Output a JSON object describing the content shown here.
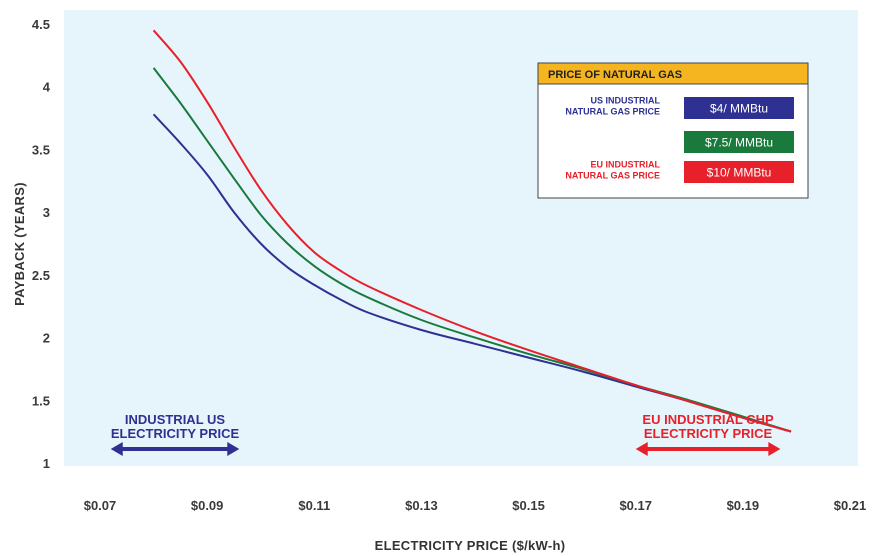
{
  "chart_data": {
    "type": "line",
    "title": "",
    "xlabel": "ELECTRICITY PRICE ($/kW-h)",
    "ylabel": "PAYBACK (YEARS)",
    "xlim": [
      0.07,
      0.21
    ],
    "ylim": [
      0.95,
      4.55
    ],
    "grid": false,
    "x_ticks": [
      0.07,
      0.09,
      0.11,
      0.13,
      0.15,
      0.17,
      0.19,
      0.21
    ],
    "x_tick_labels": [
      "$0.07",
      "$0.09",
      "$0.11",
      "$0.13",
      "$0.15",
      "$0.17",
      "$0.19",
      "$0.21"
    ],
    "y_ticks": [
      1,
      1.5,
      2,
      2.5,
      3,
      3.5,
      4,
      4.5
    ],
    "y_tick_labels": [
      "1",
      "1.5",
      "2",
      "2.5",
      "3",
      "3.5",
      "4",
      "4.5"
    ],
    "legend": {
      "title": "PRICE OF NATURAL GAS",
      "placement": "top-right",
      "entries": [
        {
          "label_lines": [
            "US INDUSTRIAL",
            "NATURAL GAS PRICE"
          ],
          "badge": "$4/ MMBtu",
          "color": "#2e3192"
        },
        {
          "label_lines": [],
          "badge": "$7.5/ MMBtu",
          "color": "#1a7a3c"
        },
        {
          "label_lines": [
            "EU INDUSTRIAL",
            "NATURAL GAS PRICE"
          ],
          "badge": "$10/ MMBtu",
          "color": "#e8202a"
        }
      ]
    },
    "series": [
      {
        "name": "$4/ MMBtu",
        "color": "#2e3192",
        "x": [
          0.08,
          0.085,
          0.09,
          0.095,
          0.1,
          0.105,
          0.11,
          0.115,
          0.12,
          0.13,
          0.14,
          0.15,
          0.16,
          0.17,
          0.18,
          0.19,
          0.199
        ],
        "y": [
          3.78,
          3.55,
          3.3,
          3.0,
          2.75,
          2.56,
          2.42,
          2.3,
          2.2,
          2.06,
          1.95,
          1.84,
          1.73,
          1.61,
          1.49,
          1.36,
          1.25
        ]
      },
      {
        "name": "$7.5/ MMBtu",
        "color": "#1a7a3c",
        "x": [
          0.08,
          0.085,
          0.09,
          0.095,
          0.1,
          0.105,
          0.11,
          0.115,
          0.12,
          0.13,
          0.14,
          0.15,
          0.16,
          0.17,
          0.18,
          0.19,
          0.199
        ],
        "y": [
          4.15,
          3.87,
          3.57,
          3.27,
          2.98,
          2.75,
          2.57,
          2.43,
          2.32,
          2.14,
          2.0,
          1.87,
          1.75,
          1.62,
          1.5,
          1.37,
          1.25
        ]
      },
      {
        "name": "$10/ MMBtu",
        "color": "#e8202a",
        "x": [
          0.08,
          0.085,
          0.09,
          0.095,
          0.1,
          0.105,
          0.11,
          0.115,
          0.12,
          0.13,
          0.14,
          0.15,
          0.16,
          0.17,
          0.18,
          0.19,
          0.199
        ],
        "y": [
          4.45,
          4.2,
          3.88,
          3.52,
          3.18,
          2.9,
          2.68,
          2.53,
          2.41,
          2.22,
          2.05,
          1.9,
          1.76,
          1.62,
          1.49,
          1.36,
          1.25
        ]
      }
    ],
    "annotations": [
      {
        "lines": [
          "INDUSTRIAL US",
          "ELECTRICITY PRICE"
        ],
        "x_range": [
          0.072,
          0.096
        ],
        "color": "#2e3192"
      },
      {
        "lines": [
          "EU INDUSTRIAL CHP",
          "ELECTRICITY PRICE"
        ],
        "x_range": [
          0.17,
          0.197
        ],
        "color": "#e8202a"
      }
    ]
  }
}
